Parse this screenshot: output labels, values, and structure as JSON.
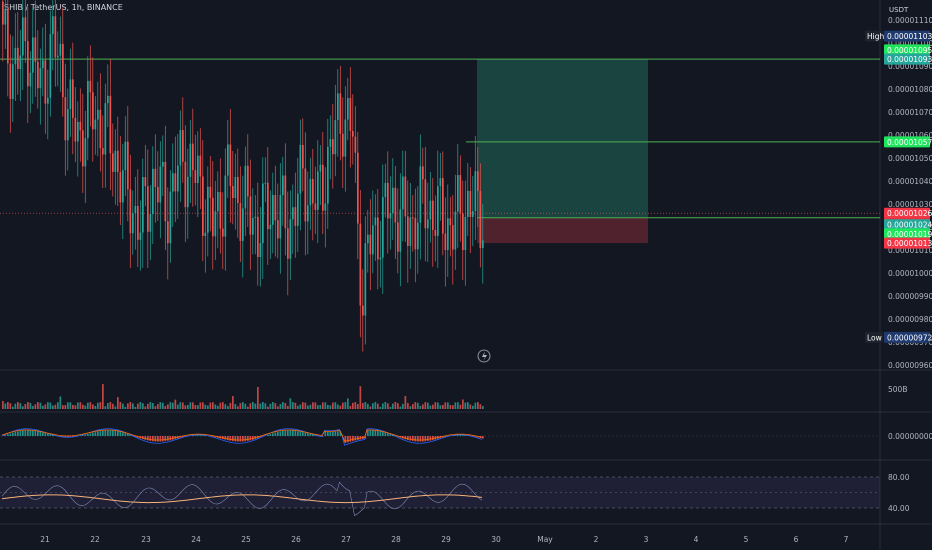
{
  "header": {
    "title": "SHIB / TetherUS, 1h, BINANCE",
    "unit": "USDT"
  },
  "colors": {
    "background": "#131722",
    "up": "#26a69a",
    "down": "#ef5350",
    "profit_zone": "#1c4c45",
    "loss_zone": "#5a2430",
    "target_line": "#4caf50",
    "green_tag": "#1ee55c",
    "teal_tag": "#26a69a",
    "red_tag": "#f23645",
    "dark_tag": "#1e3a6e"
  },
  "price_axis": {
    "tick_labels": [
      "0.00001110",
      "0.00001100",
      "0.00001090",
      "0.00001080",
      "0.00001070",
      "0.00001060",
      "0.00001050",
      "0.00001040",
      "0.00001030",
      "0.00001020",
      "0.00001010",
      "0.00001000",
      "0.00000990",
      "0.00000980",
      "0.00000970",
      "0.00000960"
    ],
    "high_tag": {
      "label": "High",
      "value": "0.00001103"
    },
    "low_tag": {
      "label": "Low",
      "value": "0.00000972"
    },
    "tags": {
      "target_top_green": "0.00001095",
      "target_top_teal": "0.00001093",
      "mid_target": "0.00001057",
      "current": "0.00001026",
      "countdown": "13:50",
      "entry_teal": "0.00001024",
      "entry_green": "0.00001019",
      "stop_red": "0.00001013"
    }
  },
  "volume_axis": {
    "label": "500B"
  },
  "macd_axis": {
    "label": "0.00000000"
  },
  "rsi_axis": {
    "labels": [
      "80.00",
      "40.00"
    ]
  },
  "time_axis": {
    "labels": [
      "21",
      "22",
      "23",
      "24",
      "25",
      "26",
      "27",
      "28",
      "29",
      "30",
      "May",
      "2",
      "3",
      "4",
      "5",
      "6",
      "7"
    ]
  },
  "chart_data": {
    "type": "candlestick",
    "title": "SHIB / TetherUS, 1h, BINANCE",
    "symbol": "SHIB/USDT",
    "interval": "1h",
    "exchange": "BINANCE",
    "ylim": [
      9.6e-06,
      1.11e-05
    ],
    "anchors_close": [
      [
        0,
        1.1e-05
      ],
      [
        5,
        1.09e-05
      ],
      [
        10,
        1.1e-05
      ],
      [
        15,
        1.08e-05
      ],
      [
        20,
        1.1e-05
      ],
      [
        23,
        1.09e-05
      ],
      [
        26,
        1.07e-05
      ],
      [
        30,
        1.06e-05
      ],
      [
        36,
        1.07e-05
      ],
      [
        42,
        1.06e-05
      ],
      [
        48,
        1.04e-05
      ],
      [
        55,
        1.02e-05
      ],
      [
        60,
        1.04e-05
      ],
      [
        66,
        1.03e-05
      ],
      [
        72,
        1.05e-05
      ],
      [
        78,
        1.04e-05
      ],
      [
        84,
        1.02e-05
      ],
      [
        90,
        1.04e-05
      ],
      [
        96,
        1.03e-05
      ],
      [
        102,
        1.02e-05
      ],
      [
        108,
        1.03e-05
      ],
      [
        114,
        1.02e-05
      ],
      [
        120,
        1.04e-05
      ],
      [
        126,
        1.03e-05
      ],
      [
        130,
        1.05e-05
      ],
      [
        133,
        1.06e-05
      ],
      [
        136,
        1.07e-05
      ],
      [
        140,
        1.06e-05
      ],
      [
        142,
        1.02e-05
      ],
      [
        144,
        9.9e-06
      ],
      [
        146,
        1.01e-05
      ],
      [
        150,
        1.02e-05
      ],
      [
        156,
        1.03e-05
      ],
      [
        162,
        1.02e-05
      ],
      [
        168,
        1.03e-05
      ],
      [
        174,
        1.025e-05
      ],
      [
        180,
        1.02e-05
      ],
      [
        186,
        1.03e-05
      ],
      [
        192,
        1.026e-05
      ]
    ],
    "high": 1.103e-05,
    "low": 9.72e-06,
    "position_tool": {
      "entry": 1.024e-05,
      "target": 1.093e-05,
      "stop": 1.013e-05,
      "mid_target": 1.057e-05
    },
    "rsi_bands": [
      80,
      40
    ]
  }
}
